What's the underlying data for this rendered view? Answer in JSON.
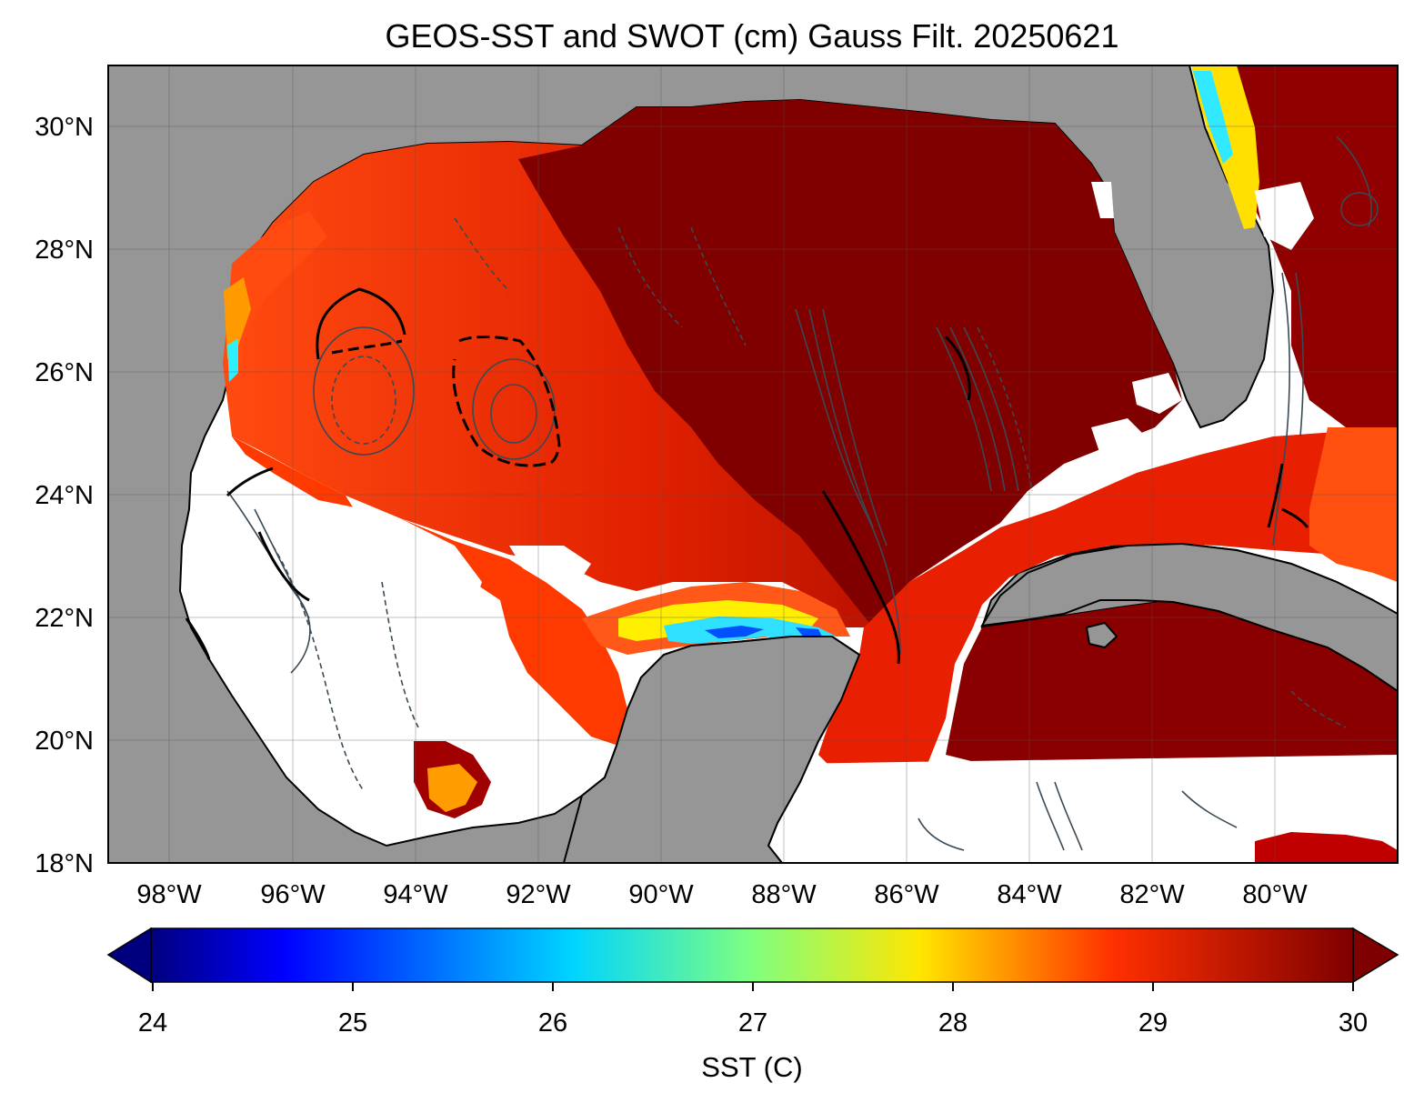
{
  "title": "GEOS-SST  and SWOT (cm) Gauss Filt. 20250621",
  "map": {
    "lon_range": [
      -99.0,
      -78.0
    ],
    "lat_range": [
      18.0,
      31.0
    ],
    "lat_ticks": [
      {
        "value": 30,
        "label": "30°N"
      },
      {
        "value": 28,
        "label": "28°N"
      },
      {
        "value": 26,
        "label": "26°N"
      },
      {
        "value": 24,
        "label": "24°N"
      },
      {
        "value": 22,
        "label": "22°N"
      },
      {
        "value": 20,
        "label": "20°N"
      },
      {
        "value": 18,
        "label": "18°N"
      }
    ],
    "lon_ticks": [
      {
        "value": -98,
        "label": "98°W"
      },
      {
        "value": -96,
        "label": "96°W"
      },
      {
        "value": -94,
        "label": "94°W"
      },
      {
        "value": -92,
        "label": "92°W"
      },
      {
        "value": -90,
        "label": "90°W"
      },
      {
        "value": -88,
        "label": "88°W"
      },
      {
        "value": -86,
        "label": "86°W"
      },
      {
        "value": -84,
        "label": "84°W"
      },
      {
        "value": -82,
        "label": "82°W"
      },
      {
        "value": -80,
        "label": "80°W"
      }
    ],
    "gridlines": true,
    "land_color": "#969696",
    "contour_color": "#3a4a55"
  },
  "colorbar": {
    "label": "SST (C)",
    "range": [
      24,
      30
    ],
    "ticks": [
      "24",
      "25",
      "26",
      "27",
      "28",
      "29",
      "30"
    ],
    "colormap": "jet",
    "extend": "both"
  }
}
